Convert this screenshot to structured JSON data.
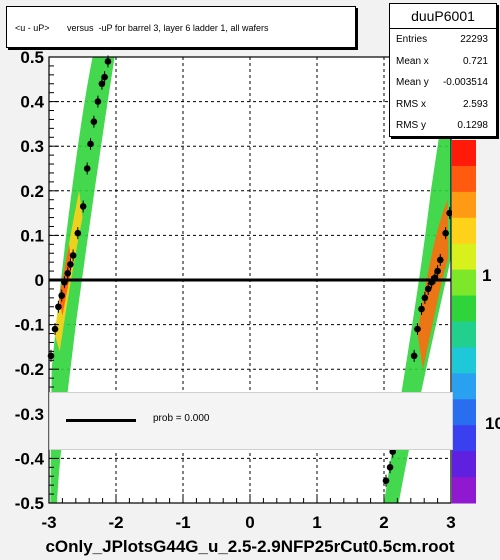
{
  "chart_data": {
    "type": "scatter",
    "title": "<u - uP>       versus  -uP for barrel 3, layer 6 ladder 1, all wafers",
    "xlim": [
      -3,
      3
    ],
    "ylim": [
      -0.5,
      0.5
    ],
    "x_ticks": [
      "-3",
      "-2",
      "-1",
      "0",
      "1",
      "2",
      "3"
    ],
    "y_ticks": [
      "0.5",
      "0.4",
      "0.3",
      "0.2",
      "0.1",
      "0",
      "-0.1",
      "-0.2",
      "-0.3",
      "-0.4",
      "-0.5"
    ],
    "grid": true,
    "profile_points": [
      {
        "x": -2.97,
        "y": -0.17
      },
      {
        "x": -2.91,
        "y": -0.11
      },
      {
        "x": -2.86,
        "y": -0.06
      },
      {
        "x": -2.81,
        "y": -0.035
      },
      {
        "x": -2.77,
        "y": -0.005
      },
      {
        "x": -2.72,
        "y": 0.015
      },
      {
        "x": -2.68,
        "y": 0.035
      },
      {
        "x": -2.64,
        "y": 0.055
      },
      {
        "x": -2.57,
        "y": 0.105
      },
      {
        "x": -2.49,
        "y": 0.165
      },
      {
        "x": -2.43,
        "y": 0.25
      },
      {
        "x": -2.38,
        "y": 0.305
      },
      {
        "x": -2.33,
        "y": 0.355
      },
      {
        "x": -2.27,
        "y": 0.4
      },
      {
        "x": -2.21,
        "y": 0.44
      },
      {
        "x": -2.17,
        "y": 0.455
      },
      {
        "x": -2.12,
        "y": 0.49
      },
      {
        "x": 2.03,
        "y": -0.45
      },
      {
        "x": 2.09,
        "y": -0.42
      },
      {
        "x": 2.13,
        "y": -0.385
      },
      {
        "x": 2.45,
        "y": -0.17
      },
      {
        "x": 2.5,
        "y": -0.11
      },
      {
        "x": 2.56,
        "y": -0.065
      },
      {
        "x": 2.61,
        "y": -0.04
      },
      {
        "x": 2.66,
        "y": -0.02
      },
      {
        "x": 2.71,
        "y": -0.005
      },
      {
        "x": 2.76,
        "y": 0.005
      },
      {
        "x": 2.8,
        "y": 0.02
      },
      {
        "x": 2.84,
        "y": 0.045
      },
      {
        "x": 2.92,
        "y": 0.105
      },
      {
        "x": 2.98,
        "y": 0.15
      }
    ],
    "fit_line": {
      "y": 0
    },
    "palette_labels": [
      "1",
      "10"
    ]
  },
  "stats": {
    "title": "duuP6001",
    "rows": [
      {
        "key": "Entries",
        "value": "22293"
      },
      {
        "key": "Mean x",
        "value": "0.721"
      },
      {
        "key": "Mean y",
        "value": "-0.003514"
      },
      {
        "key": "RMS x",
        "value": "2.593"
      },
      {
        "key": "RMS y",
        "value": "0.1298"
      }
    ]
  },
  "legend": {
    "label": "prob = 0.000"
  },
  "footer": "cOnly_JPlotsG44G_u_2.5-2.9NFP25rCut0.5cm.root"
}
